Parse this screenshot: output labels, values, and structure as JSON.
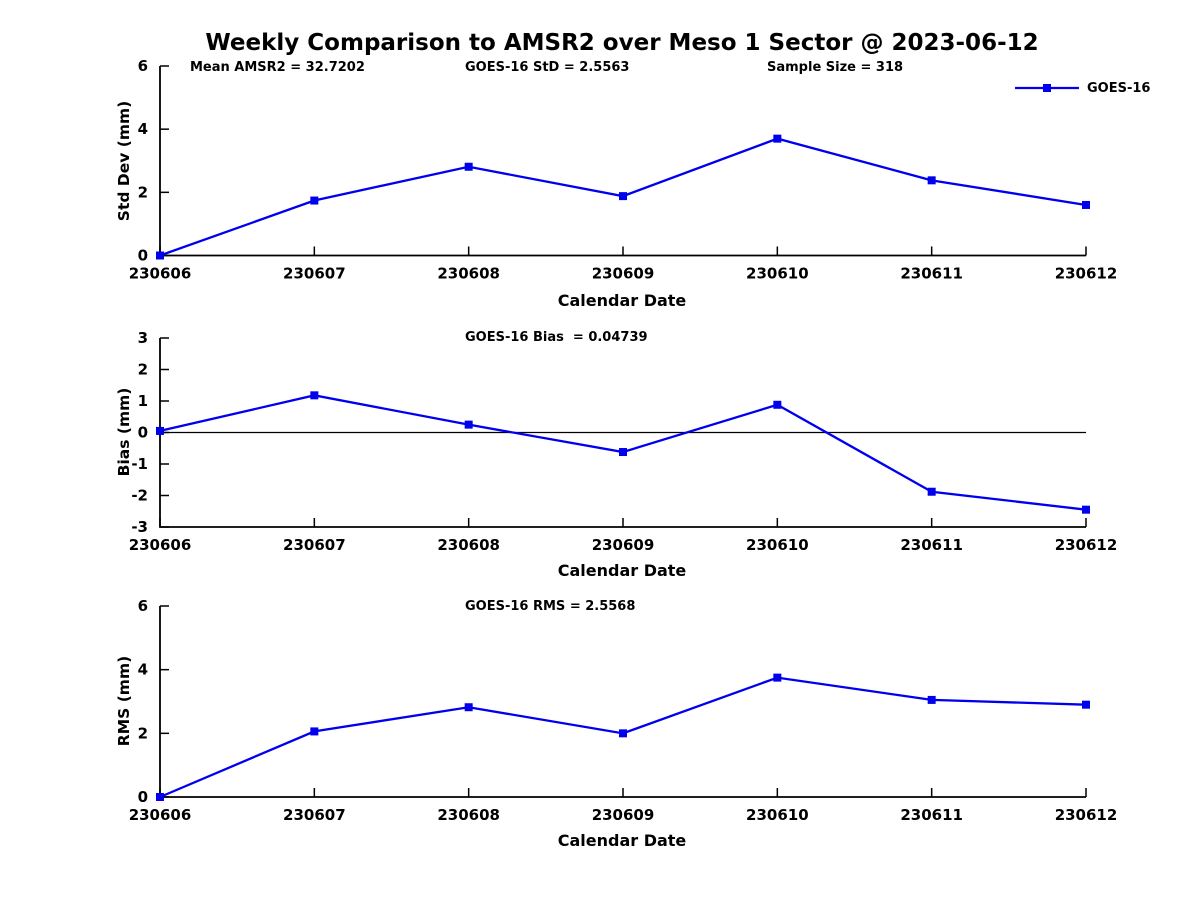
{
  "figure": {
    "title": "Weekly Comparison to AMSR2 over Meso 1 Sector @ 2023-06-12",
    "colors": {
      "series": "#0000EE",
      "axis": "#000000",
      "text": "#000000"
    },
    "legend": {
      "label": "GOES-16"
    }
  },
  "chart_data": [
    {
      "id": "std-dev",
      "type": "line",
      "ylabel": "Std Dev (mm)",
      "xlabel": "Calendar Date",
      "categories": [
        "230606",
        "230607",
        "230608",
        "230609",
        "230610",
        "230611",
        "230612"
      ],
      "series": [
        {
          "name": "GOES-16",
          "marker": "square",
          "color": "#0000EE",
          "values": [
            0.0,
            1.74,
            2.81,
            1.88,
            3.7,
            2.38,
            1.6
          ]
        }
      ],
      "ylim": [
        0,
        6
      ],
      "yticks": [
        0,
        2,
        4,
        6
      ],
      "grid": false,
      "zero_line": false,
      "legend_position": "top-right",
      "annotations": [
        {
          "text": "Mean AMSR2 = 32.7202"
        },
        {
          "text": "GOES-16 StD = 2.5563"
        },
        {
          "text": "Sample Size = 318"
        }
      ]
    },
    {
      "id": "bias",
      "type": "line",
      "ylabel": "Bias (mm)",
      "xlabel": "Calendar Date",
      "categories": [
        "230606",
        "230607",
        "230608",
        "230609",
        "230610",
        "230611",
        "230612"
      ],
      "series": [
        {
          "name": "GOES-16",
          "marker": "square",
          "color": "#0000EE",
          "values": [
            0.05,
            1.18,
            0.25,
            -0.62,
            0.88,
            -1.88,
            -2.45
          ]
        }
      ],
      "ylim": [
        -3,
        3
      ],
      "yticks": [
        -3,
        -2,
        -1,
        0,
        1,
        2,
        3
      ],
      "grid": false,
      "zero_line": true,
      "annotations": [
        {
          "text": "GOES-16 Bias  = 0.04739"
        }
      ]
    },
    {
      "id": "rms",
      "type": "line",
      "ylabel": "RMS (mm)",
      "xlabel": "Calendar Date",
      "categories": [
        "230606",
        "230607",
        "230608",
        "230609",
        "230610",
        "230611",
        "230612"
      ],
      "series": [
        {
          "name": "GOES-16",
          "marker": "square",
          "color": "#0000EE",
          "values": [
            0.0,
            2.06,
            2.82,
            2.0,
            3.75,
            3.05,
            2.9
          ]
        }
      ],
      "ylim": [
        0,
        6
      ],
      "yticks": [
        0,
        2,
        4,
        6
      ],
      "grid": false,
      "zero_line": false,
      "annotations": [
        {
          "text": "GOES-16 RMS = 2.5568"
        }
      ]
    }
  ]
}
